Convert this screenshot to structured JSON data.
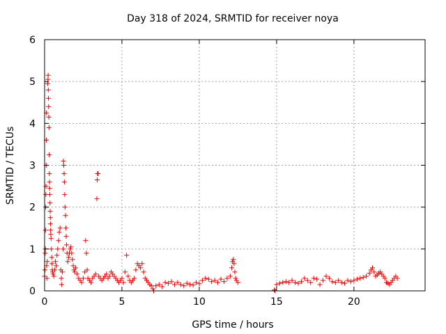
{
  "chart_data": {
    "type": "scatter",
    "title": "Day 318 of 2024, SRMTID for receiver noya",
    "xlabel": "GPS time / hours",
    "ylabel": "SRMTID / TECUs",
    "xlim": [
      0,
      24.6
    ],
    "ylim": [
      0,
      6
    ],
    "xticks": [
      0,
      5,
      10,
      15,
      20
    ],
    "yticks": [
      0,
      1,
      2,
      3,
      4,
      5,
      6
    ],
    "grid": true,
    "marker": "+",
    "color": "#e00000",
    "series": [
      {
        "name": "SRMTID",
        "points": [
          [
            0.0,
            0.35
          ],
          [
            0.02,
            0.5
          ],
          [
            0.04,
            0.9
          ],
          [
            0.05,
            1.0
          ],
          [
            0.06,
            1.45
          ],
          [
            0.07,
            2.0
          ],
          [
            0.08,
            2.3
          ],
          [
            0.09,
            2.5
          ],
          [
            0.1,
            3.0
          ],
          [
            0.11,
            3.6
          ],
          [
            0.12,
            4.25
          ],
          [
            0.13,
            0.6
          ],
          [
            0.15,
            0.3
          ],
          [
            0.17,
            0.7
          ],
          [
            0.2,
            4.95
          ],
          [
            0.22,
            5.05
          ],
          [
            0.23,
            5.15
          ],
          [
            0.24,
            4.8
          ],
          [
            0.25,
            4.6
          ],
          [
            0.26,
            4.4
          ],
          [
            0.27,
            4.15
          ],
          [
            0.28,
            3.9
          ],
          [
            0.3,
            3.25
          ],
          [
            0.31,
            2.8
          ],
          [
            0.32,
            2.6
          ],
          [
            0.33,
            2.45
          ],
          [
            0.34,
            2.3
          ],
          [
            0.35,
            2.1
          ],
          [
            0.36,
            1.9
          ],
          [
            0.37,
            1.75
          ],
          [
            0.38,
            1.6
          ],
          [
            0.39,
            1.45
          ],
          [
            0.4,
            1.35
          ],
          [
            0.42,
            1.25
          ],
          [
            0.44,
            1.0
          ],
          [
            0.46,
            0.8
          ],
          [
            0.48,
            0.65
          ],
          [
            0.5,
            0.5
          ],
          [
            0.52,
            0.45
          ],
          [
            0.55,
            0.4
          ],
          [
            0.6,
            0.35
          ],
          [
            0.65,
            0.5
          ],
          [
            0.7,
            0.7
          ],
          [
            0.75,
            0.6
          ],
          [
            0.8,
            0.85
          ],
          [
            0.85,
            1.0
          ],
          [
            0.9,
            1.2
          ],
          [
            0.95,
            1.4
          ],
          [
            1.0,
            1.5
          ],
          [
            1.05,
            0.5
          ],
          [
            1.08,
            0.3
          ],
          [
            1.1,
            0.15
          ],
          [
            1.15,
            0.45
          ],
          [
            1.2,
            1.0
          ],
          [
            1.22,
            3.1
          ],
          [
            1.24,
            3.0
          ],
          [
            1.26,
            2.8
          ],
          [
            1.28,
            2.6
          ],
          [
            1.3,
            2.3
          ],
          [
            1.32,
            2.0
          ],
          [
            1.35,
            1.8
          ],
          [
            1.38,
            1.5
          ],
          [
            1.4,
            1.3
          ],
          [
            1.42,
            1.1
          ],
          [
            1.45,
            0.9
          ],
          [
            1.5,
            0.7
          ],
          [
            1.55,
            0.8
          ],
          [
            1.6,
            0.9
          ],
          [
            1.65,
            1.0
          ],
          [
            1.7,
            1.05
          ],
          [
            1.75,
            0.9
          ],
          [
            1.8,
            0.75
          ],
          [
            1.85,
            0.6
          ],
          [
            1.9,
            0.5
          ],
          [
            1.95,
            0.45
          ],
          [
            2.0,
            0.55
          ],
          [
            2.1,
            0.4
          ],
          [
            2.2,
            0.3
          ],
          [
            2.3,
            0.25
          ],
          [
            2.4,
            0.2
          ],
          [
            2.5,
            0.3
          ],
          [
            2.6,
            0.45
          ],
          [
            2.65,
            1.2
          ],
          [
            2.7,
            0.9
          ],
          [
            2.75,
            0.5
          ],
          [
            2.8,
            0.3
          ],
          [
            2.9,
            0.25
          ],
          [
            3.0,
            0.2
          ],
          [
            3.1,
            0.3
          ],
          [
            3.2,
            0.35
          ],
          [
            3.3,
            0.4
          ],
          [
            3.38,
            2.2
          ],
          [
            3.4,
            2.65
          ],
          [
            3.42,
            2.8
          ],
          [
            3.46,
            2.8
          ],
          [
            3.5,
            0.35
          ],
          [
            3.6,
            0.3
          ],
          [
            3.7,
            0.25
          ],
          [
            3.8,
            0.3
          ],
          [
            3.9,
            0.35
          ],
          [
            4.0,
            0.4
          ],
          [
            4.1,
            0.3
          ],
          [
            4.2,
            0.35
          ],
          [
            4.3,
            0.45
          ],
          [
            4.4,
            0.4
          ],
          [
            4.5,
            0.35
          ],
          [
            4.6,
            0.3
          ],
          [
            4.7,
            0.25
          ],
          [
            4.8,
            0.2
          ],
          [
            4.9,
            0.25
          ],
          [
            5.0,
            0.3
          ],
          [
            5.1,
            0.2
          ],
          [
            5.2,
            0.45
          ],
          [
            5.3,
            0.85
          ],
          [
            5.4,
            0.35
          ],
          [
            5.5,
            0.25
          ],
          [
            5.6,
            0.2
          ],
          [
            5.7,
            0.25
          ],
          [
            5.8,
            0.3
          ],
          [
            5.9,
            0.5
          ],
          [
            6.0,
            0.65
          ],
          [
            6.1,
            0.6
          ],
          [
            6.2,
            0.55
          ],
          [
            6.3,
            0.65
          ],
          [
            6.4,
            0.45
          ],
          [
            6.5,
            0.3
          ],
          [
            6.6,
            0.25
          ],
          [
            6.7,
            0.2
          ],
          [
            6.8,
            0.15
          ],
          [
            6.9,
            0.12
          ],
          [
            7.0,
            0.05
          ],
          [
            7.05,
            0.0
          ],
          [
            7.2,
            0.12
          ],
          [
            7.4,
            0.15
          ],
          [
            7.6,
            0.1
          ],
          [
            7.8,
            0.2
          ],
          [
            8.0,
            0.18
          ],
          [
            8.2,
            0.22
          ],
          [
            8.4,
            0.15
          ],
          [
            8.6,
            0.2
          ],
          [
            8.8,
            0.15
          ],
          [
            9.0,
            0.12
          ],
          [
            9.2,
            0.18
          ],
          [
            9.4,
            0.15
          ],
          [
            9.6,
            0.14
          ],
          [
            9.8,
            0.2
          ],
          [
            10.0,
            0.17
          ],
          [
            10.2,
            0.25
          ],
          [
            10.4,
            0.3
          ],
          [
            10.6,
            0.28
          ],
          [
            10.8,
            0.22
          ],
          [
            11.0,
            0.25
          ],
          [
            11.2,
            0.2
          ],
          [
            11.4,
            0.28
          ],
          [
            11.6,
            0.22
          ],
          [
            11.8,
            0.3
          ],
          [
            12.0,
            0.35
          ],
          [
            12.1,
            0.55
          ],
          [
            12.15,
            0.7
          ],
          [
            12.2,
            0.75
          ],
          [
            12.25,
            0.65
          ],
          [
            12.3,
            0.45
          ],
          [
            12.35,
            0.3
          ],
          [
            12.4,
            0.25
          ],
          [
            12.5,
            0.2
          ],
          [
            14.85,
            0.02
          ],
          [
            14.9,
            0.0
          ],
          [
            15.0,
            0.15
          ],
          [
            15.2,
            0.18
          ],
          [
            15.4,
            0.2
          ],
          [
            15.6,
            0.22
          ],
          [
            15.8,
            0.2
          ],
          [
            16.0,
            0.25
          ],
          [
            16.2,
            0.2
          ],
          [
            16.4,
            0.18
          ],
          [
            16.6,
            0.22
          ],
          [
            16.8,
            0.3
          ],
          [
            17.0,
            0.25
          ],
          [
            17.2,
            0.2
          ],
          [
            17.4,
            0.3
          ],
          [
            17.6,
            0.28
          ],
          [
            17.8,
            0.15
          ],
          [
            18.0,
            0.25
          ],
          [
            18.2,
            0.35
          ],
          [
            18.4,
            0.3
          ],
          [
            18.6,
            0.22
          ],
          [
            18.8,
            0.2
          ],
          [
            19.0,
            0.25
          ],
          [
            19.2,
            0.2
          ],
          [
            19.4,
            0.18
          ],
          [
            19.6,
            0.25
          ],
          [
            19.8,
            0.22
          ],
          [
            20.0,
            0.25
          ],
          [
            20.2,
            0.28
          ],
          [
            20.4,
            0.3
          ],
          [
            20.6,
            0.32
          ],
          [
            20.8,
            0.35
          ],
          [
            21.0,
            0.42
          ],
          [
            21.1,
            0.5
          ],
          [
            21.2,
            0.55
          ],
          [
            21.3,
            0.45
          ],
          [
            21.4,
            0.35
          ],
          [
            21.5,
            0.38
          ],
          [
            21.6,
            0.42
          ],
          [
            21.7,
            0.45
          ],
          [
            21.8,
            0.4
          ],
          [
            21.9,
            0.35
          ],
          [
            22.0,
            0.3
          ],
          [
            22.1,
            0.2
          ],
          [
            22.2,
            0.18
          ],
          [
            22.3,
            0.15
          ],
          [
            22.4,
            0.2
          ],
          [
            22.5,
            0.25
          ],
          [
            22.6,
            0.3
          ],
          [
            22.7,
            0.35
          ],
          [
            22.8,
            0.3
          ]
        ]
      }
    ]
  }
}
